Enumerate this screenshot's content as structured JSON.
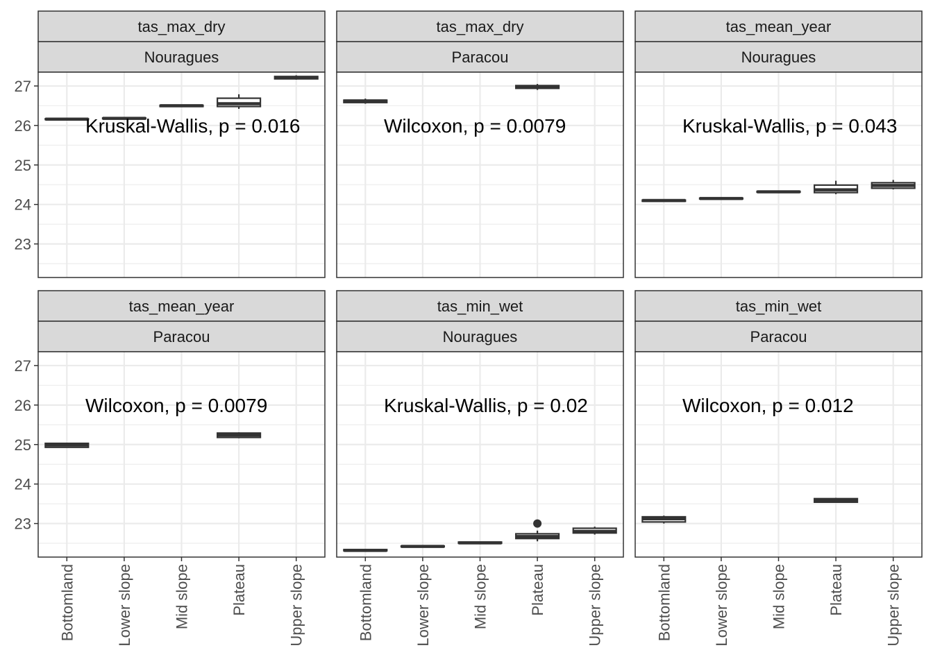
{
  "chart_data": {
    "type": "box",
    "categories": [
      "Bottomland",
      "Lower slope",
      "Mid slope",
      "Plateau",
      "Upper slope"
    ],
    "y_ticks": [
      23,
      24,
      25,
      26,
      27
    ],
    "ylim": [
      22.15,
      27.35
    ],
    "grid": true,
    "panels": [
      {
        "variable": "tas_max_dry",
        "site": "Nouragues",
        "annotation": "Kruskal-Wallis, p = 0.016",
        "boxes": [
          {
            "category": "Bottomland",
            "min": 26.14,
            "q1": 26.15,
            "median": 26.16,
            "q3": 26.17,
            "max": 26.18
          },
          {
            "category": "Lower slope",
            "min": 26.16,
            "q1": 26.17,
            "median": 26.18,
            "q3": 26.19,
            "max": 26.2
          },
          {
            "category": "Mid slope",
            "min": 26.47,
            "q1": 26.48,
            "median": 26.5,
            "q3": 26.51,
            "max": 26.52
          },
          {
            "category": "Plateau",
            "min": 26.42,
            "q1": 26.48,
            "median": 26.55,
            "q3": 26.69,
            "max": 26.79
          },
          {
            "category": "Upper slope",
            "min": 27.16,
            "q1": 27.18,
            "median": 27.21,
            "q3": 27.24,
            "max": 27.27
          }
        ],
        "outliers": []
      },
      {
        "variable": "tas_max_dry",
        "site": "Paracou",
        "annotation": "Wilcoxon, p = 0.0079",
        "boxes": [
          {
            "category": "Bottomland",
            "min": 26.55,
            "q1": 26.58,
            "median": 26.62,
            "q3": 26.64,
            "max": 26.68
          },
          {
            "category": "Plateau",
            "min": 26.9,
            "q1": 26.94,
            "median": 26.98,
            "q3": 27.01,
            "max": 27.05
          }
        ],
        "outliers": []
      },
      {
        "variable": "tas_mean_year",
        "site": "Nouragues",
        "annotation": "Kruskal-Wallis, p = 0.043",
        "boxes": [
          {
            "category": "Bottomland",
            "min": 24.07,
            "q1": 24.08,
            "median": 24.1,
            "q3": 24.11,
            "max": 24.12
          },
          {
            "category": "Lower slope",
            "min": 24.13,
            "q1": 24.14,
            "median": 24.15,
            "q3": 24.16,
            "max": 24.17
          },
          {
            "category": "Mid slope",
            "min": 24.3,
            "q1": 24.31,
            "median": 24.32,
            "q3": 24.33,
            "max": 24.34
          },
          {
            "category": "Plateau",
            "min": 24.26,
            "q1": 24.3,
            "median": 24.37,
            "q3": 24.49,
            "max": 24.6
          },
          {
            "category": "Upper slope",
            "min": 24.38,
            "q1": 24.41,
            "median": 24.48,
            "q3": 24.55,
            "max": 24.62
          }
        ],
        "outliers": []
      },
      {
        "variable": "tas_mean_year",
        "site": "Paracou",
        "annotation": "Wilcoxon, p = 0.0079",
        "boxes": [
          {
            "category": "Bottomland",
            "min": 24.92,
            "q1": 24.93,
            "median": 24.99,
            "q3": 25.03,
            "max": 25.04
          },
          {
            "category": "Plateau",
            "min": 25.16,
            "q1": 25.18,
            "median": 25.24,
            "q3": 25.29,
            "max": 25.31
          }
        ],
        "outliers": []
      },
      {
        "variable": "tas_min_wet",
        "site": "Nouragues",
        "annotation": "Kruskal-Wallis, p = 0.02",
        "boxes": [
          {
            "category": "Bottomland",
            "min": 22.3,
            "q1": 22.31,
            "median": 22.32,
            "q3": 22.34,
            "max": 22.35
          },
          {
            "category": "Lower slope",
            "min": 22.4,
            "q1": 22.41,
            "median": 22.42,
            "q3": 22.43,
            "max": 22.44
          },
          {
            "category": "Mid slope",
            "min": 22.49,
            "q1": 22.5,
            "median": 22.51,
            "q3": 22.53,
            "max": 22.54
          },
          {
            "category": "Plateau",
            "min": 22.55,
            "q1": 22.62,
            "median": 22.67,
            "q3": 22.74,
            "max": 22.82
          },
          {
            "category": "Upper slope",
            "min": 22.72,
            "q1": 22.76,
            "median": 22.8,
            "q3": 22.88,
            "max": 22.92
          }
        ],
        "outliers": [
          {
            "category": "Plateau",
            "value": 23.0
          }
        ]
      },
      {
        "variable": "tas_min_wet",
        "site": "Paracou",
        "annotation": "Wilcoxon, p = 0.012",
        "boxes": [
          {
            "category": "Bottomland",
            "min": 23.0,
            "q1": 23.04,
            "median": 23.12,
            "q3": 23.17,
            "max": 23.2
          },
          {
            "category": "Plateau",
            "min": 23.53,
            "q1": 23.54,
            "median": 23.58,
            "q3": 23.63,
            "max": 23.65
          }
        ],
        "outliers": []
      }
    ]
  }
}
